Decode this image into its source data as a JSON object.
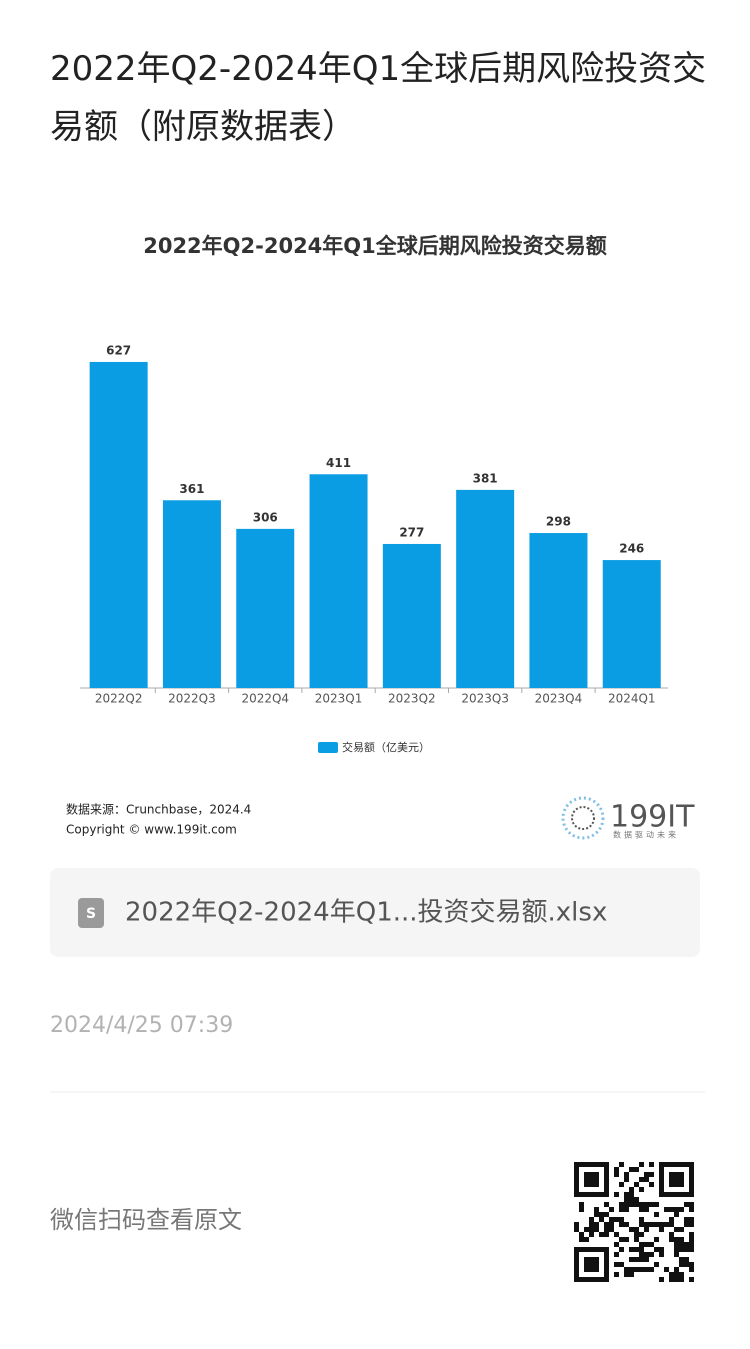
{
  "header": {
    "title": "2022年Q2-2024年Q1全球后期风险投资交易额（附原数据表）"
  },
  "chart_data": {
    "type": "bar",
    "title": "2022年Q2-2024年Q1全球后期风险投资交易额",
    "categories": [
      "2022Q2",
      "2022Q3",
      "2022Q4",
      "2023Q1",
      "2023Q2",
      "2023Q3",
      "2023Q4",
      "2024Q1"
    ],
    "series": [
      {
        "name": "交易额（亿美元）",
        "color": "#0a9de3",
        "values": [
          627,
          361,
          306,
          411,
          277,
          381,
          298,
          246
        ]
      }
    ],
    "legend": "bottom"
  },
  "chart_footer": {
    "source": "数据来源：Crunchbase，2024.4",
    "copyright": "Copyright © www.199it.com",
    "logo": "199IT",
    "slogan": "数据驱动未来"
  },
  "attachment": {
    "filename": "2022年Q2-2024年Q1...投资交易额.xlsx"
  },
  "date": "2024/4/25 07:39",
  "qr_caption": "微信扫码查看原文"
}
